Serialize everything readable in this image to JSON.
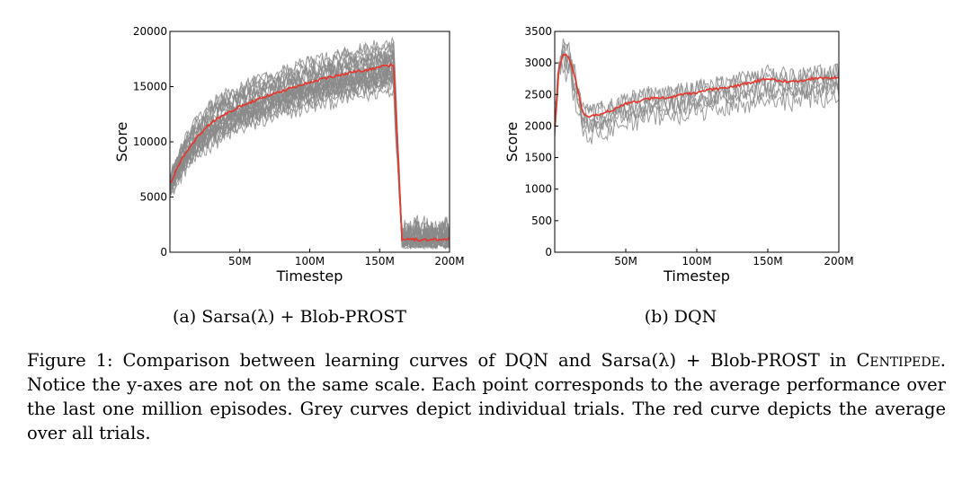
{
  "chart_data": [
    {
      "type": "line",
      "id": "sarsa",
      "title": "",
      "subcaption": "(a) Sarsa(λ) + Blob-PROST",
      "xlabel": "Timestep",
      "ylabel": "Score",
      "xlim": [
        0,
        200
      ],
      "ylim": [
        0,
        20000
      ],
      "xticks": [
        50,
        100,
        150,
        200
      ],
      "xtick_labels": [
        "50M",
        "100M",
        "150M",
        "200M"
      ],
      "yticks": [
        0,
        5000,
        10000,
        15000,
        20000
      ],
      "ytick_labels": [
        "0",
        "5000",
        "10000",
        "15000",
        "20000"
      ],
      "individual_trials": 24,
      "series": [
        {
          "name": "average over all trials",
          "color": "#e8342a",
          "x": [
            0,
            10,
            20,
            30,
            40,
            50,
            60,
            70,
            80,
            90,
            100,
            110,
            120,
            130,
            140,
            150,
            160,
            163,
            166,
            170,
            180,
            190,
            200
          ],
          "values": [
            6200,
            8800,
            10500,
            11800,
            12600,
            13200,
            13700,
            14200,
            14600,
            15000,
            15400,
            15700,
            16000,
            16300,
            16500,
            16800,
            17000,
            9000,
            1200,
            1200,
            1100,
            1150,
            1200
          ]
        }
      ]
    },
    {
      "type": "line",
      "id": "dqn",
      "title": "",
      "subcaption": "(b) DQN",
      "xlabel": "Timestep",
      "ylabel": "Score",
      "xlim": [
        0,
        200
      ],
      "ylim": [
        0,
        3500
      ],
      "xticks": [
        50,
        100,
        150,
        200
      ],
      "xtick_labels": [
        "50M",
        "100M",
        "150M",
        "200M"
      ],
      "yticks": [
        0,
        500,
        1000,
        1500,
        2000,
        2500,
        3000,
        3500
      ],
      "ytick_labels": [
        "0",
        "500",
        "1000",
        "1500",
        "2000",
        "2500",
        "3000",
        "3500"
      ],
      "individual_trials": 6,
      "series": [
        {
          "name": "average over all trials",
          "color": "#e8342a",
          "x": [
            0,
            3,
            6,
            10,
            15,
            20,
            25,
            30,
            40,
            50,
            60,
            70,
            80,
            90,
            100,
            110,
            120,
            130,
            140,
            150,
            160,
            170,
            180,
            190,
            200
          ],
          "values": [
            2000,
            2900,
            3150,
            3100,
            2700,
            2200,
            2150,
            2180,
            2250,
            2350,
            2400,
            2450,
            2450,
            2500,
            2520,
            2580,
            2600,
            2650,
            2700,
            2750,
            2720,
            2700,
            2750,
            2760,
            2780
          ]
        }
      ]
    }
  ],
  "caption": {
    "label": "Figure 1:",
    "text_1": "Comparison between learning curves of DQN and Sarsa(λ) + Blob-PROST in",
    "game": "Centipede",
    "text_2": ". Notice the y-axes are not on the same scale. Each point corresponds to the average performance over the last one million episodes. Grey curves depict individual trials. The red curve depicts the average over all trials."
  }
}
